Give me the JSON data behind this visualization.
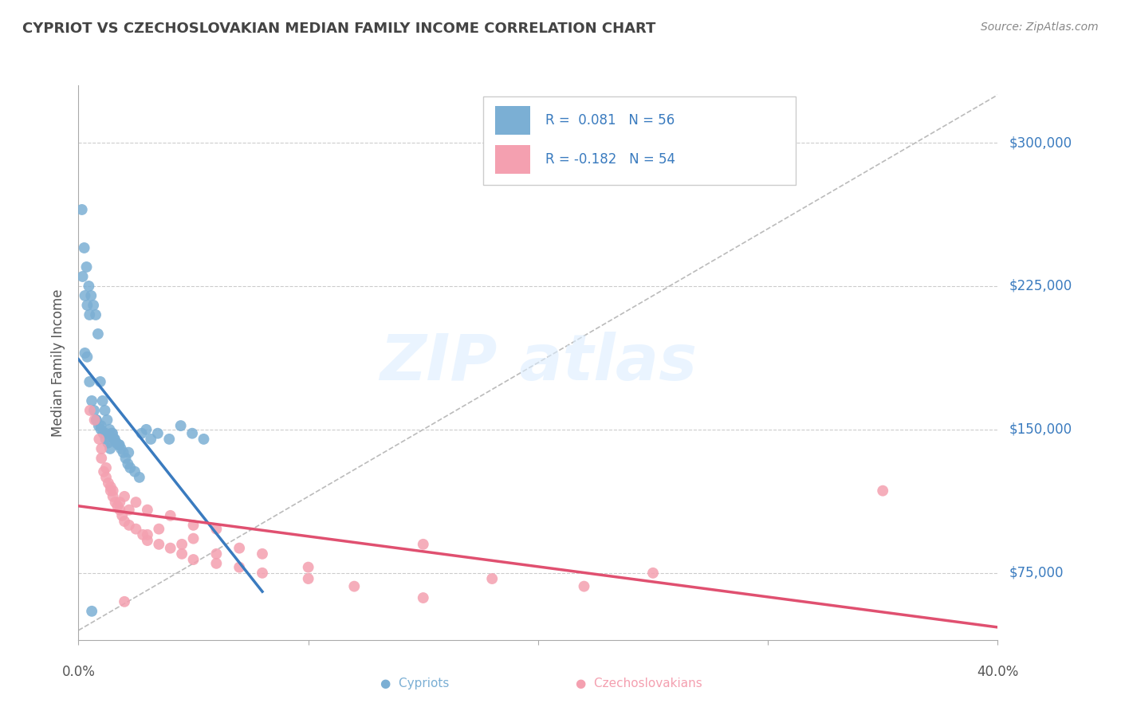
{
  "title": "CYPRIOT VS CZECHOSLOVAKIAN MEDIAN FAMILY INCOME CORRELATION CHART",
  "source": "Source: ZipAtlas.com",
  "ylabel": "Median Family Income",
  "yticks": [
    75000,
    150000,
    225000,
    300000
  ],
  "ytick_labels": [
    "$75,000",
    "$150,000",
    "$225,000",
    "$300,000"
  ],
  "xmin": 0.0,
  "xmax": 40.0,
  "ymin": 40000,
  "ymax": 330000,
  "cypriot_R": 0.081,
  "cypriot_N": 56,
  "czech_R": -0.182,
  "czech_N": 54,
  "cypriot_color": "#7BAFD4",
  "czech_color": "#F4A0B0",
  "cypriot_line_color": "#3A7BBF",
  "czech_line_color": "#E05070",
  "background_color": "#FFFFFF",
  "legend_color": "#3A7BBF",
  "cypriot_x": [
    0.15,
    0.25,
    0.35,
    0.45,
    0.55,
    0.65,
    0.75,
    0.85,
    0.95,
    1.05,
    1.15,
    1.25,
    1.35,
    1.45,
    1.55,
    1.65,
    1.75,
    1.85,
    1.95,
    2.05,
    2.15,
    2.25,
    2.45,
    2.65,
    2.95,
    3.45,
    3.95,
    4.45,
    4.95,
    5.45,
    0.28,
    0.38,
    0.48,
    0.58,
    0.68,
    0.78,
    0.88,
    0.98,
    1.08,
    1.18,
    1.28,
    1.38,
    0.18,
    0.28,
    0.38,
    0.48,
    1.48,
    1.58,
    2.75,
    3.15,
    1.78,
    2.18,
    1.18,
    0.98,
    0.78,
    0.58
  ],
  "cypriot_y": [
    265000,
    245000,
    235000,
    225000,
    220000,
    215000,
    210000,
    200000,
    175000,
    165000,
    160000,
    155000,
    150000,
    148000,
    145000,
    143000,
    142000,
    140000,
    138000,
    135000,
    132000,
    130000,
    128000,
    125000,
    150000,
    148000,
    145000,
    152000,
    148000,
    145000,
    190000,
    188000,
    175000,
    165000,
    160000,
    155000,
    152000,
    150000,
    148000,
    145000,
    143000,
    140000,
    230000,
    220000,
    215000,
    210000,
    148000,
    145000,
    148000,
    145000,
    142000,
    138000,
    148000,
    152000,
    155000,
    55000
  ],
  "czech_x": [
    0.5,
    0.7,
    0.9,
    1.0,
    1.1,
    1.2,
    1.3,
    1.4,
    1.5,
    1.6,
    1.7,
    1.8,
    1.9,
    2.0,
    2.2,
    2.5,
    2.8,
    3.0,
    3.5,
    4.0,
    4.5,
    5.0,
    6.0,
    7.0,
    8.0,
    10.0,
    12.0,
    15.0,
    18.0,
    22.0,
    1.0,
    1.2,
    1.4,
    2.0,
    2.5,
    3.0,
    4.0,
    5.0,
    6.0,
    8.0,
    1.5,
    1.8,
    2.2,
    3.5,
    5.0,
    7.0,
    10.0,
    35.0,
    25.0,
    15.0,
    2.0,
    3.0,
    4.5,
    6.0
  ],
  "czech_y": [
    160000,
    155000,
    145000,
    135000,
    128000,
    125000,
    122000,
    118000,
    115000,
    112000,
    110000,
    108000,
    105000,
    102000,
    100000,
    98000,
    95000,
    92000,
    90000,
    88000,
    85000,
    82000,
    80000,
    78000,
    75000,
    72000,
    68000,
    90000,
    72000,
    68000,
    140000,
    130000,
    120000,
    115000,
    112000,
    108000,
    105000,
    100000,
    98000,
    85000,
    118000,
    112000,
    108000,
    98000,
    93000,
    88000,
    78000,
    118000,
    75000,
    62000,
    60000,
    95000,
    90000,
    85000
  ]
}
